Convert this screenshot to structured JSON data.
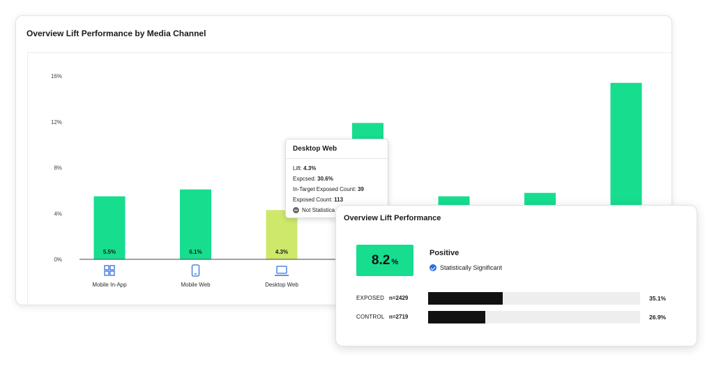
{
  "main": {
    "title": "Overview Lift Performance by Media Channel"
  },
  "chart_data": {
    "type": "bar",
    "title": "Overview Lift Performance by Media Channel",
    "categories": [
      "Mobile In-App",
      "Mobile Web",
      "Desktop Web",
      "",
      "",
      "",
      ""
    ],
    "values": [
      5.5,
      6.1,
      4.3,
      11.9,
      5.5,
      5.8,
      15.4
    ],
    "bar_labels": [
      "5.5%",
      "6.1%",
      "4.3%",
      "",
      "",
      "",
      ""
    ],
    "highlighted_index": 2,
    "y_ticks": [
      "0%",
      "4%",
      "8%",
      "12%",
      "16%"
    ],
    "ylim": [
      0,
      16
    ],
    "xlabel": "",
    "ylabel": "",
    "grid": false,
    "colors": {
      "bar": "#17dd8f",
      "highlight": "#cde86a",
      "icon": "#2f6fdc"
    },
    "category_icons": [
      "grid-icon",
      "phone-icon",
      "laptop-icon",
      "",
      "",
      "",
      ""
    ]
  },
  "tooltip": {
    "title": "Desktop Web",
    "lift_label": "Lift:",
    "lift_value": "4.3%",
    "exposed_label": "Expcsed:",
    "exposed_value": "30.6%",
    "in_target_label": "In-Target Exposed Count:",
    "in_target_value": "39",
    "exposed_count_label": "Exposed Count:",
    "exposed_count_value": "113",
    "status": "Not Statistica"
  },
  "overview": {
    "title": "Overview Lift Performance",
    "lift_value": "8.2",
    "lift_unit": "%",
    "result": "Positive",
    "significance": "Statistically Significant",
    "accent_color": "#17dd8f",
    "rows": [
      {
        "name": "EXPOSED",
        "n": "n=2429",
        "value": 35.1,
        "pct_label": "35.1%"
      },
      {
        "name": "CONTROL",
        "n": "n=2719",
        "value": 26.9,
        "pct_label": "26.9%"
      }
    ]
  }
}
